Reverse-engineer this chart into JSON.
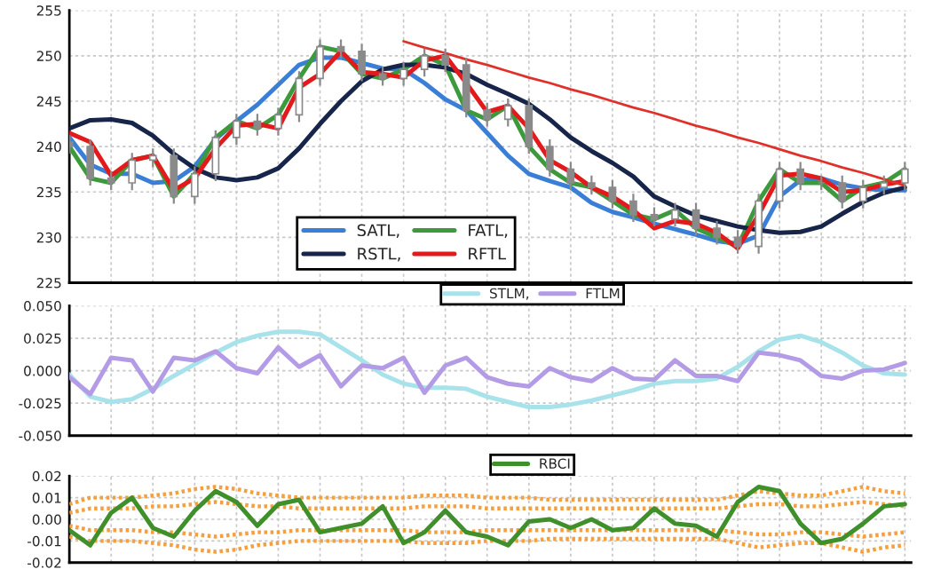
{
  "chart_data": [
    {
      "type": "line",
      "categories": [
        null,
        null,
        null,
        null,
        null,
        null,
        null,
        null,
        null,
        null,
        null,
        null,
        null,
        null,
        null,
        null,
        null,
        null,
        null,
        null,
        null,
        null,
        null,
        null,
        null,
        null,
        null,
        null,
        null,
        null,
        null,
        null,
        null,
        null,
        null,
        null,
        null,
        null,
        null,
        null,
        null
      ],
      "ylim": [
        225,
        255
      ],
      "yticks": [
        225,
        230,
        235,
        240,
        245,
        250,
        255
      ],
      "grid": true,
      "legend": "bottom",
      "tick_labels": "y",
      "series": [
        {
          "type": "candlestick",
          "color": "#8a8a8a",
          "ohlc": [
            [
              240.5,
              241.3,
              239.2,
              240
            ],
            [
              240,
              240.8,
              235.7,
              236.5
            ],
            [
              236.5,
              237.3,
              235.2,
              236
            ],
            [
              236,
              239.3,
              235.2,
              238.5
            ],
            [
              238.5,
              239.8,
              237.7,
              239
            ],
            [
              239,
              239.8,
              233.7,
              234.5
            ],
            [
              234.5,
              237.8,
              233.7,
              237
            ],
            [
              237,
              241.8,
              236.2,
              241
            ],
            [
              241,
              243.6,
              240.2,
              242.8
            ],
            [
              242.8,
              243.6,
              241.2,
              242
            ],
            [
              242,
              244.3,
              241.2,
              243.5
            ],
            [
              243.5,
              248.3,
              242.7,
              247.5
            ],
            [
              247.5,
              251.8,
              246.7,
              251
            ],
            [
              251,
              251.8,
              249.7,
              250.5
            ],
            [
              250.5,
              251.3,
              247.2,
              248
            ],
            [
              248,
              248.8,
              246.7,
              247.5
            ],
            [
              247.5,
              249.3,
              246.7,
              248.5
            ],
            [
              248.5,
              250.8,
              247.7,
              250
            ],
            [
              250,
              250.8,
              248.2,
              249
            ],
            [
              249,
              249.8,
              243.2,
              244
            ],
            [
              244,
              244.8,
              242.2,
              243
            ],
            [
              243,
              245.3,
              242.2,
              244.5
            ],
            [
              244.5,
              245.3,
              239.2,
              240
            ],
            [
              240,
              240.8,
              236.7,
              237.5
            ],
            [
              237.5,
              238.3,
              235.2,
              236
            ],
            [
              236,
              236.8,
              234.7,
              235.5
            ],
            [
              235.5,
              236.3,
              233.2,
              234
            ],
            [
              234,
              234.8,
              231.7,
              232.5
            ],
            [
              232.5,
              233.3,
              231.2,
              232
            ],
            [
              232,
              233.8,
              231.2,
              233
            ],
            [
              233,
              233.8,
              230.2,
              231
            ],
            [
              231,
              231.8,
              229.2,
              230
            ],
            [
              230,
              230.8,
              228.2,
              229
            ],
            [
              229,
              234.8,
              228.2,
              234
            ],
            [
              234,
              238.3,
              233.2,
              237.5
            ],
            [
              237.5,
              238.3,
              235.2,
              236
            ],
            [
              236,
              236.8,
              235.2,
              236
            ],
            [
              236,
              236.8,
              233.2,
              234
            ],
            [
              234,
              236.3,
              233.2,
              235.5
            ],
            [
              235.5,
              236.8,
              234.7,
              236
            ],
            [
              236,
              238.3,
              235.2,
              237.5
            ]
          ]
        },
        {
          "name": "SATL,",
          "color": "#3a7fd5",
          "values": [
            241,
            238,
            237,
            237,
            236,
            236.2,
            237.8,
            240.8,
            242.8,
            244.6,
            246.8,
            249,
            249.8,
            249.8,
            249.2,
            248.6,
            248.5,
            247,
            245.2,
            244,
            241.5,
            239,
            237,
            236.2,
            235.5,
            233.8,
            232.8,
            232.2,
            231.5,
            230.9,
            230.3,
            229.6,
            229.3,
            230.2,
            234.5,
            236.3,
            236.5,
            235.8,
            235.4,
            235.2,
            235.2
          ]
        },
        {
          "name": "FATL,",
          "color": "#3c9a3c",
          "values": [
            240,
            236.5,
            236,
            238.5,
            239,
            234.5,
            237,
            241,
            242.8,
            242,
            243.5,
            247.5,
            251,
            250.5,
            248,
            247.5,
            248.5,
            250,
            249,
            244,
            243,
            244.5,
            240,
            237.5,
            236,
            235.5,
            234,
            232.5,
            232,
            233,
            231,
            230,
            229,
            234,
            237.5,
            236,
            236,
            234,
            235.5,
            236,
            237.5
          ]
        },
        {
          "name": "RSTL,",
          "color": "#17254a",
          "values": [
            242,
            242.9,
            243,
            242.6,
            241.2,
            239.2,
            237.6,
            236.6,
            236.3,
            236.6,
            237.6,
            239.8,
            242.5,
            245,
            247.2,
            248.5,
            249,
            249,
            248.7,
            248,
            246.8,
            245.8,
            244.7,
            243,
            241,
            239.5,
            238.2,
            236.7,
            234.5,
            233.4,
            232.4,
            231.8,
            231.2,
            230.8,
            230.5,
            230.6,
            231.2,
            232.6,
            233.9,
            234.9,
            235.5
          ]
        },
        {
          "name": "RFTL",
          "color": "#e31a1c",
          "values": [
            241.5,
            240.5,
            236.8,
            238.5,
            239,
            235.2,
            236.5,
            239.8,
            242.3,
            242.5,
            242,
            246.5,
            248,
            250.5,
            248.2,
            248,
            247.6,
            249.5,
            250,
            247,
            243.8,
            244.5,
            242,
            238.5,
            237.2,
            235.5,
            234.5,
            233,
            231,
            231.8,
            231.5,
            230.5,
            228.8,
            232.5,
            236.8,
            237,
            236.5,
            235,
            235.2,
            235.8,
            236.2
          ]
        },
        {
          "color": "#e0302a",
          "values": [
            null,
            null,
            null,
            null,
            null,
            null,
            null,
            null,
            null,
            null,
            null,
            null,
            null,
            null,
            null,
            null,
            251.6,
            250.9,
            250.3,
            249.6,
            249,
            248.3,
            247.6,
            247,
            246.3,
            245.7,
            245,
            244.3,
            243.7,
            243,
            242.3,
            241.7,
            241,
            240.4,
            239.7,
            239,
            238.4,
            237.7,
            237.1,
            236.4,
            235.7
          ]
        }
      ]
    },
    {
      "type": "line",
      "categories": [
        null,
        null,
        null,
        null,
        null,
        null,
        null,
        null,
        null,
        null,
        null,
        null,
        null,
        null,
        null,
        null,
        null,
        null,
        null,
        null,
        null,
        null,
        null,
        null,
        null,
        null,
        null,
        null,
        null,
        null,
        null,
        null,
        null,
        null,
        null,
        null,
        null,
        null,
        null,
        null,
        null
      ],
      "ylim": [
        -0.05,
        0.05
      ],
      "yticks": [
        {
          "value": -0.05,
          "label": "-0.050"
        },
        {
          "value": -0.025,
          "label": "-0.025"
        },
        {
          "value": 0,
          "label": "0.000"
        },
        {
          "value": 0.025,
          "label": "0.025"
        },
        {
          "value": 0.05,
          "label": "0.050"
        }
      ],
      "grid": true,
      "legend": "top",
      "tick_labels": "y",
      "series": [
        {
          "name": "STLM,",
          "color": "#a8e2ea",
          "values": [
            -0.003,
            -0.02,
            -0.024,
            -0.022,
            -0.014,
            -0.004,
            0.005,
            0.014,
            0.022,
            0.027,
            0.03,
            0.03,
            0.028,
            0.018,
            0.008,
            -0.003,
            -0.01,
            -0.013,
            -0.013,
            -0.014,
            -0.02,
            -0.024,
            -0.028,
            -0.028,
            -0.026,
            -0.023,
            -0.019,
            -0.015,
            -0.01,
            -0.008,
            -0.008,
            -0.006,
            0.003,
            0.015,
            0.024,
            0.027,
            0.022,
            0.014,
            0.004,
            -0.002,
            -0.003
          ]
        },
        {
          "name": "FTLM",
          "color": "#b49be6",
          "values": [
            -0.005,
            -0.018,
            0.01,
            0.008,
            -0.016,
            0.01,
            0.008,
            0.015,
            0.002,
            -0.002,
            0.018,
            0.003,
            0.012,
            -0.012,
            0.004,
            0.002,
            0.01,
            -0.017,
            0.004,
            0.01,
            -0.005,
            -0.01,
            -0.012,
            0.002,
            -0.005,
            -0.008,
            0.002,
            -0.006,
            -0.007,
            0.008,
            -0.004,
            -0.004,
            -0.008,
            0.014,
            0.012,
            0.008,
            -0.004,
            -0.006,
            0.0,
            0.001,
            0.006
          ]
        }
      ]
    },
    {
      "type": "line",
      "categories": [
        null,
        null,
        null,
        null,
        null,
        null,
        null,
        null,
        null,
        null,
        null,
        null,
        null,
        null,
        null,
        null,
        null,
        null,
        null,
        null,
        null,
        null,
        null,
        null,
        null,
        null,
        null,
        null,
        null,
        null,
        null,
        null,
        null,
        null,
        null,
        null,
        null,
        null,
        null,
        null,
        null
      ],
      "ylim": [
        -0.02,
        0.02
      ],
      "yticks": [
        {
          "value": -0.02,
          "label": "-0.02"
        },
        {
          "value": -0.01,
          "label": "-0.01"
        },
        {
          "value": 0,
          "label": "0.00"
        },
        {
          "value": 0.01,
          "label": "0.01"
        },
        {
          "value": 0.02,
          "label": "0.02"
        }
      ],
      "grid": true,
      "legend": "top",
      "tick_labels": "y",
      "series": [
        {
          "color": "#f5a040",
          "line_style": "dotted",
          "values": [
            0.007,
            0.01,
            0.01,
            0.01,
            0.011,
            0.012,
            0.014,
            0.015,
            0.014,
            0.012,
            0.011,
            0.01,
            0.01,
            0.01,
            0.01,
            0.01,
            0.01,
            0.011,
            0.011,
            0.011,
            0.01,
            0.01,
            0.01,
            0.009,
            0.009,
            0.009,
            0.009,
            0.009,
            0.009,
            0.009,
            0.009,
            0.009,
            0.011,
            0.013,
            0.012,
            0.011,
            0.011,
            0.013,
            0.015,
            0.013,
            0.012
          ]
        },
        {
          "color": "#f5a040",
          "line_style": "dotted",
          "values": [
            0.003,
            0.005,
            0.005,
            0.005,
            0.006,
            0.006,
            0.007,
            0.008,
            0.007,
            0.006,
            0.006,
            0.005,
            0.005,
            0.005,
            0.005,
            0.005,
            0.005,
            0.006,
            0.006,
            0.006,
            0.005,
            0.005,
            0.005,
            0.005,
            0.005,
            0.005,
            0.005,
            0.005,
            0.005,
            0.005,
            0.005,
            0.005,
            0.006,
            0.007,
            0.007,
            0.006,
            0.006,
            0.007,
            0.008,
            0.007,
            0.006
          ]
        },
        {
          "color": "#f5a040",
          "line_style": "dotted",
          "values": [
            -0.003,
            -0.005,
            -0.005,
            -0.005,
            -0.006,
            -0.006,
            -0.007,
            -0.008,
            -0.007,
            -0.006,
            -0.006,
            -0.005,
            -0.005,
            -0.005,
            -0.005,
            -0.005,
            -0.005,
            -0.006,
            -0.006,
            -0.006,
            -0.005,
            -0.005,
            -0.005,
            -0.005,
            -0.005,
            -0.005,
            -0.005,
            -0.005,
            -0.005,
            -0.005,
            -0.005,
            -0.005,
            -0.006,
            -0.007,
            -0.007,
            -0.006,
            -0.006,
            -0.007,
            -0.008,
            -0.007,
            -0.006
          ]
        },
        {
          "color": "#f5a040",
          "line_style": "dotted",
          "values": [
            -0.008,
            -0.01,
            -0.01,
            -0.01,
            -0.011,
            -0.012,
            -0.014,
            -0.015,
            -0.014,
            -0.012,
            -0.011,
            -0.01,
            -0.01,
            -0.01,
            -0.01,
            -0.01,
            -0.01,
            -0.011,
            -0.011,
            -0.011,
            -0.01,
            -0.01,
            -0.01,
            -0.009,
            -0.009,
            -0.009,
            -0.009,
            -0.009,
            -0.009,
            -0.009,
            -0.009,
            -0.009,
            -0.011,
            -0.013,
            -0.012,
            -0.011,
            -0.011,
            -0.013,
            -0.015,
            -0.013,
            -0.012
          ]
        },
        {
          "name": "RBCI",
          "color": "#3f8f2a",
          "values": [
            -0.005,
            -0.012,
            0.003,
            0.01,
            -0.004,
            -0.008,
            0.004,
            0.013,
            0.008,
            -0.003,
            0.007,
            0.009,
            -0.006,
            -0.004,
            -0.002,
            0.006,
            -0.011,
            -0.006,
            0.004,
            -0.006,
            -0.008,
            -0.012,
            -0.001,
            0.0,
            -0.004,
            0.0,
            -0.005,
            -0.004,
            0.005,
            -0.002,
            -0.003,
            -0.008,
            0.008,
            0.015,
            0.013,
            -0.002,
            -0.011,
            -0.009,
            -0.002,
            0.006,
            0.007
          ]
        }
      ]
    }
  ]
}
